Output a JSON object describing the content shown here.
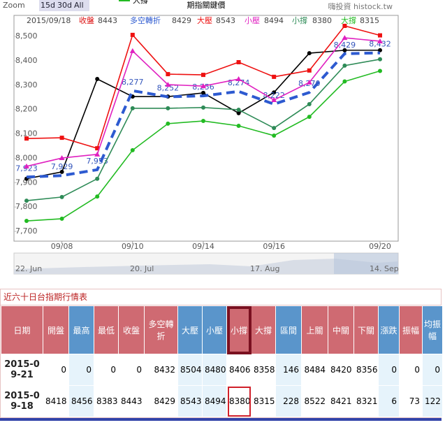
{
  "chart_data": {
    "type": "line",
    "title": "期指關鍵價",
    "date": "2015/09/18",
    "credit": "嗨投資 histock.tw",
    "categories": [
      null,
      "09/08",
      null,
      "09/10",
      null,
      "09/14",
      null,
      "09/16",
      null,
      null,
      "09/20"
    ],
    "ylim": [
      7660,
      8586
    ],
    "yticks": [
      {
        "value": 7700,
        "label": "7,700"
      },
      {
        "value": 7800,
        "label": "7,800"
      },
      {
        "value": 7900,
        "label": "7,900"
      },
      {
        "value": 8000,
        "label": "8,000"
      },
      {
        "value": 8100,
        "label": "8,100"
      },
      {
        "value": 8200,
        "label": "8,200"
      },
      {
        "value": 8300,
        "label": "8,300"
      },
      {
        "value": 8400,
        "label": "8,400"
      },
      {
        "value": 8500,
        "label": "8,500"
      }
    ],
    "grid": false,
    "series": [
      {
        "name": "收盤",
        "color": "#000000",
        "label_color": "#dd1111",
        "marker": "circle",
        "values": [
          7916,
          7944,
          8325,
          8253,
          8253,
          8268,
          8185,
          8270,
          8431,
          8443,
          8443
        ]
      },
      {
        "name": "多空轉折",
        "color": "#2d5ad0",
        "label_color": "#2d5ad0",
        "dash": true,
        "values": [
          7923,
          7929,
          7953,
          8277,
          8252,
          8256,
          8274,
          8222,
          8270,
          8429,
          8432
        ],
        "value_labels": [
          "7,923",
          "7,929",
          "7,953",
          "8,277",
          "8,252",
          "8,256",
          "8,274",
          "8,222",
          "8,270",
          "8,429",
          "8,432"
        ]
      },
      {
        "name": "大壓",
        "color": "#ee1111",
        "label_color": "#ee1111",
        "marker": "square",
        "values": [
          8081,
          8084,
          8041,
          8506,
          8345,
          8342,
          8394,
          8334,
          8360,
          8543,
          8504
        ]
      },
      {
        "name": "小壓",
        "color": "#e020c0",
        "label_color": "#e020c0",
        "marker": "triangle",
        "values": [
          7967,
          8001,
          8016,
          8440,
          8302,
          8296,
          8325,
          8239,
          8311,
          8494,
          8480
        ]
      },
      {
        "name": "小撐",
        "color": "#2e8b57",
        "label_color": "#2e8b57",
        "marker": "circle",
        "values": [
          7826,
          7841,
          7916,
          8205,
          8205,
          8208,
          8199,
          8124,
          8222,
          8380,
          8406
        ]
      },
      {
        "name": "大撐",
        "color": "#22bb22",
        "label_color": "#22bb22",
        "marker": "circle",
        "values": [
          7743,
          7752,
          7843,
          8033,
          8142,
          8153,
          8133,
          8093,
          8170,
          8315,
          8358
        ]
      }
    ]
  },
  "zoom": {
    "label": "Zoom",
    "buttons": [
      "15d",
      "30d",
      "All"
    ]
  },
  "navigator": {
    "labels": [
      "22. Jun",
      "20. Jul",
      "17. Aug",
      "14. Sep"
    ]
  },
  "table": {
    "title": "近六十日台指期行情表",
    "columns": [
      "日期",
      "開盤",
      "最高",
      "最低",
      "收盤",
      "多空轉折",
      "大壓",
      "小壓",
      "小撐",
      "大撐",
      "區間",
      "上關",
      "中關",
      "下關",
      "漲跌",
      "振幅",
      "均振幅"
    ],
    "rows": [
      [
        "2015-09-21",
        0,
        0,
        0,
        0,
        8432,
        8504,
        8480,
        8406,
        8358,
        146,
        8484,
        8420,
        8356,
        0,
        0,
        0
      ],
      [
        "2015-09-18",
        8418,
        8456,
        8383,
        8443,
        8429,
        8543,
        8494,
        8380,
        8315,
        228,
        8522,
        8421,
        8321,
        6,
        73,
        122
      ]
    ]
  }
}
